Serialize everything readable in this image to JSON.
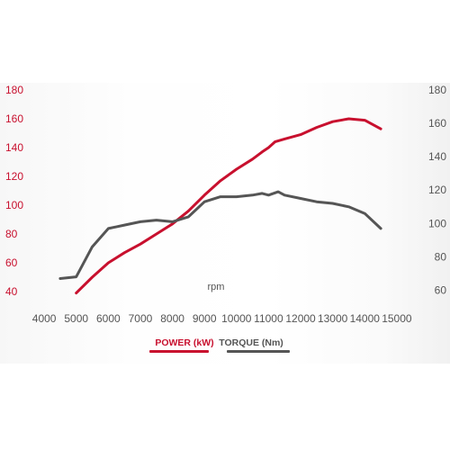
{
  "chart_data": {
    "type": "line",
    "xlabel": "rpm",
    "xlim": [
      3800,
      15200
    ],
    "x_ticks": [
      4000,
      5000,
      6000,
      7000,
      8000,
      9000,
      10000,
      11000,
      12000,
      13000,
      14000,
      15000
    ],
    "y_left": {
      "ticks": [
        40,
        60,
        80,
        100,
        120,
        140,
        160,
        180
      ],
      "lim": [
        35,
        180
      ],
      "color": "#c8102e"
    },
    "y_right": {
      "ticks": [
        60,
        80,
        100,
        120,
        140,
        160,
        180
      ],
      "lim": [
        57,
        180
      ],
      "color": "#555555"
    },
    "grid": false,
    "legend_position": "bottom-center",
    "series": [
      {
        "name": "POWER (kW)",
        "axis": "left",
        "color": "#c8102e",
        "x": [
          5000,
          5500,
          6000,
          6500,
          7000,
          7500,
          8000,
          8500,
          9000,
          9500,
          10000,
          10500,
          10800,
          11000,
          11200,
          11500,
          12000,
          12500,
          13000,
          13500,
          14000,
          14500
        ],
        "y": [
          39,
          50,
          60,
          67,
          73,
          80,
          87,
          96,
          107,
          117,
          125,
          132,
          137,
          140,
          144,
          146,
          149,
          154,
          158,
          160,
          159,
          153
        ]
      },
      {
        "name": "TORQUE (Nm)",
        "axis": "right",
        "color": "#555555",
        "x": [
          4500,
          5000,
          5500,
          6000,
          6500,
          7000,
          7500,
          8000,
          8500,
          9000,
          9500,
          10000,
          10500,
          10800,
          11000,
          11300,
          11500,
          12000,
          12500,
          13000,
          13500,
          14000,
          14500
        ],
        "y": [
          67,
          68,
          86,
          97,
          99,
          101,
          102,
          101,
          104,
          113,
          116,
          116,
          117,
          118,
          117,
          119,
          117,
          115,
          113,
          112,
          110,
          106,
          97
        ]
      }
    ]
  }
}
